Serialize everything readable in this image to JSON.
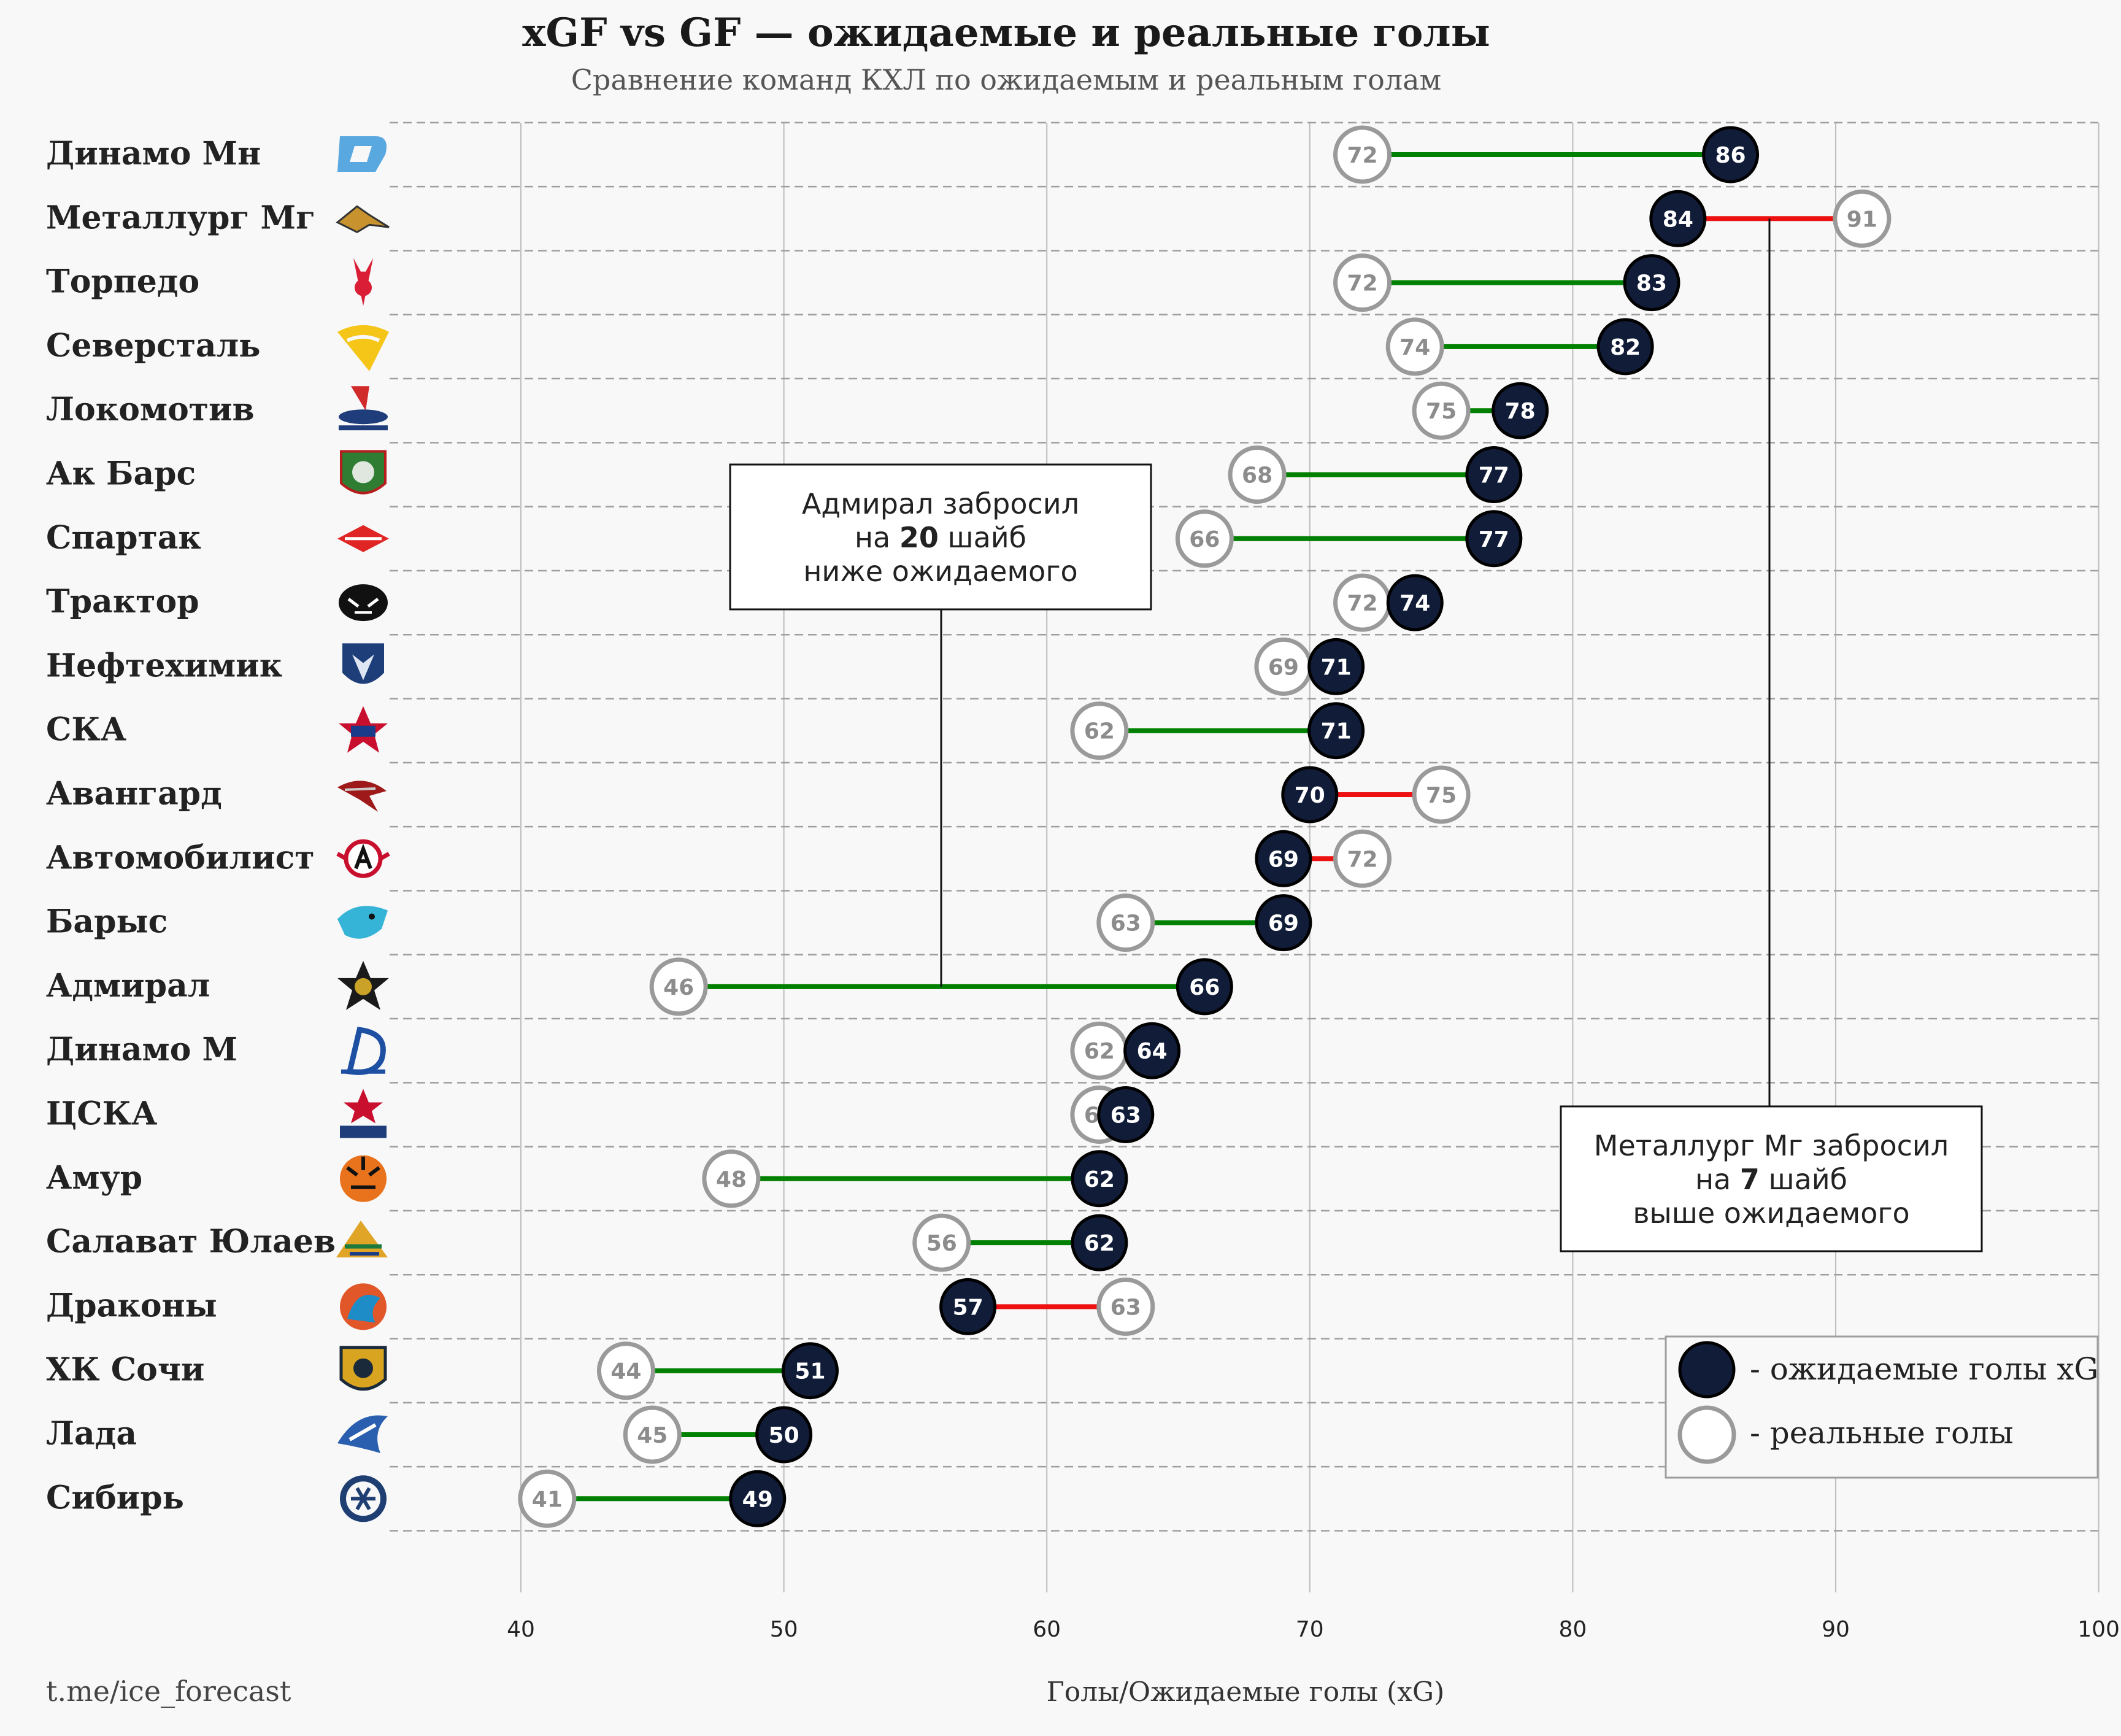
{
  "colors": {
    "xg_fill": "#111c38",
    "goals_stroke": "#9a9a9a",
    "positive": "#008000",
    "negative": "#ee1111",
    "grid": "#bdbdbd",
    "background": "#f8f8f8",
    "text": "#222222"
  },
  "chart_data": {
    "type": "dumbbell",
    "title": "xGF vs GF — ожидаемые и реальные голы",
    "subtitle": "Сравнение команд КХЛ по ожидаемым и реальным голам",
    "xlabel": "Голы/Ожидаемые голы (xG)",
    "xlim": [
      33,
      100
    ],
    "xticks": [
      40,
      50,
      60,
      70,
      80,
      90,
      100
    ],
    "source": "t.me/ice_forecast",
    "legend": {
      "position": "bottom-right",
      "items": [
        "- ожидаемые голы xG",
        "- реальные голы"
      ]
    },
    "teams": [
      {
        "name": "Динамо Мн",
        "logo": "dinamo-minsk-logo",
        "xg": 86,
        "goals": 72
      },
      {
        "name": "Металлург Мг",
        "logo": "metallurg-mg-logo",
        "xg": 84,
        "goals": 91
      },
      {
        "name": "Торпедо",
        "logo": "torpedo-logo",
        "xg": 83,
        "goals": 72
      },
      {
        "name": "Северсталь",
        "logo": "severstal-logo",
        "xg": 82,
        "goals": 74
      },
      {
        "name": "Локомотив",
        "logo": "lokomotiv-logo",
        "xg": 78,
        "goals": 75
      },
      {
        "name": "Ак Барс",
        "logo": "ak-bars-logo",
        "xg": 77,
        "goals": 68
      },
      {
        "name": "Спартак",
        "logo": "spartak-logo",
        "xg": 77,
        "goals": 66
      },
      {
        "name": "Трактор",
        "logo": "traktor-logo",
        "xg": 74,
        "goals": 72
      },
      {
        "name": "Нефтехимик",
        "logo": "neftekhimik-logo",
        "xg": 71,
        "goals": 69
      },
      {
        "name": "СКА",
        "logo": "ska-logo",
        "xg": 71,
        "goals": 62
      },
      {
        "name": "Авангард",
        "logo": "avangard-logo",
        "xg": 70,
        "goals": 75
      },
      {
        "name": "Автомобилист",
        "logo": "avtomobilist-logo",
        "xg": 69,
        "goals": 72
      },
      {
        "name": "Барыс",
        "logo": "barys-logo",
        "xg": 69,
        "goals": 63
      },
      {
        "name": "Адмирал",
        "logo": "admiral-logo",
        "xg": 66,
        "goals": 46
      },
      {
        "name": "Динамо М",
        "logo": "dinamo-moscow-logo",
        "xg": 64,
        "goals": 62
      },
      {
        "name": "ЦСКА",
        "logo": "cska-logo",
        "xg": 63,
        "goals": 62
      },
      {
        "name": "Амур",
        "logo": "amur-logo",
        "xg": 62,
        "goals": 48
      },
      {
        "name": "Салават Юлаев",
        "logo": "salavat-logo",
        "xg": 62,
        "goals": 56
      },
      {
        "name": "Драконы",
        "logo": "kunlun-logo",
        "xg": 57,
        "goals": 63
      },
      {
        "name": "ХК Сочи",
        "logo": "sochi-logo",
        "xg": 51,
        "goals": 44
      },
      {
        "name": "Лада",
        "logo": "lada-logo",
        "xg": 50,
        "goals": 45
      },
      {
        "name": "Сибирь",
        "logo": "sibir-logo",
        "xg": 49,
        "goals": 41
      }
    ],
    "annotations": [
      {
        "team_index": 13,
        "lines": [
          "Адмирал забросил",
          "на ",
          "20",
          " шайб",
          "ниже ожидаемого"
        ]
      },
      {
        "team_index": 1,
        "lines": [
          "Металлург Мг забросил",
          "на ",
          "7",
          " шайб",
          "выше ожидаемого"
        ]
      }
    ]
  }
}
